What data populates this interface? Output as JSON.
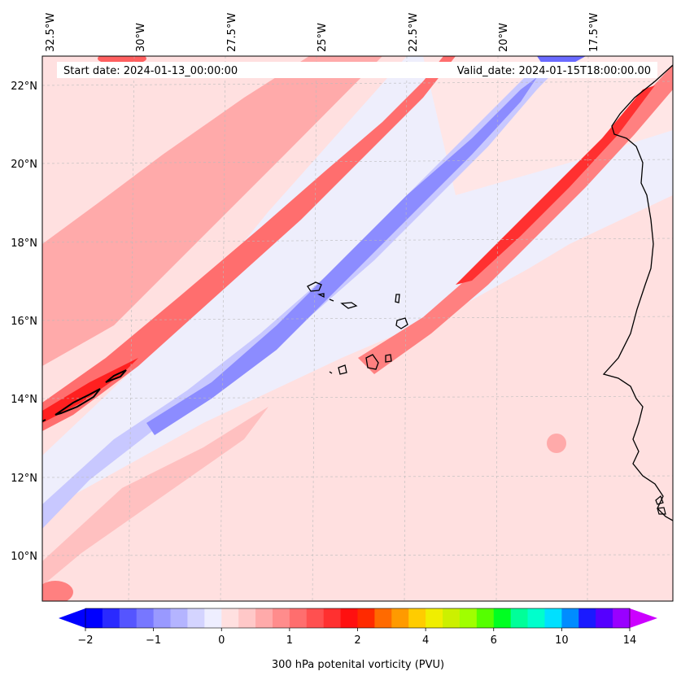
{
  "map": {
    "start_label": "Start date: 2024-01-13_00:00:00",
    "valid_label": "Valid_date: 2024-01-15T18:00:00.00",
    "lon_labels": [
      "32.5°W",
      "30°W",
      "27.5°W",
      "25°W",
      "22.5°W",
      "20°W",
      "17.5°W"
    ],
    "lat_labels": [
      "22°N",
      "20°N",
      "18°N",
      "16°N",
      "14°N",
      "12°N",
      "10°N"
    ],
    "colors": {
      "background_low": "#eeeefc",
      "pv_light": "#ffe0e0",
      "pv_medium": "#ffaaaa",
      "pv_strong": "#ff3a3a",
      "pv_max": "#ff0000",
      "pv_negative": "#8c8cff",
      "pv_negative_light": "#c8c8ff",
      "coastline": "#000000",
      "grid": "#bbbbbb"
    }
  },
  "colorbar": {
    "title": "300 hPa potenital vorticity (PVU)",
    "tick_labels": [
      "−2",
      "−1",
      "0",
      "1",
      "2",
      "4",
      "6",
      "10",
      "14"
    ],
    "colors": [
      "#0000ff",
      "#2a2aff",
      "#5555ff",
      "#7777ff",
      "#9999ff",
      "#b4b4ff",
      "#d4d4ff",
      "#eeeeff",
      "#ffe0e0",
      "#ffc8c8",
      "#ffaaaa",
      "#ff8c8c",
      "#ff6e6e",
      "#ff5050",
      "#ff3030",
      "#ff1010",
      "#ff2a00",
      "#ff6a00",
      "#ff9a00",
      "#ffcc00",
      "#f0ee00",
      "#ccf000",
      "#a0ff00",
      "#55ff00",
      "#00ff22",
      "#00ff99",
      "#00ffcc",
      "#00e0ff",
      "#008cff",
      "#1a1aff",
      "#5500ff",
      "#9900ff"
    ],
    "extend_low_color": "#0000ff",
    "extend_high_color": "#cc00ff"
  }
}
